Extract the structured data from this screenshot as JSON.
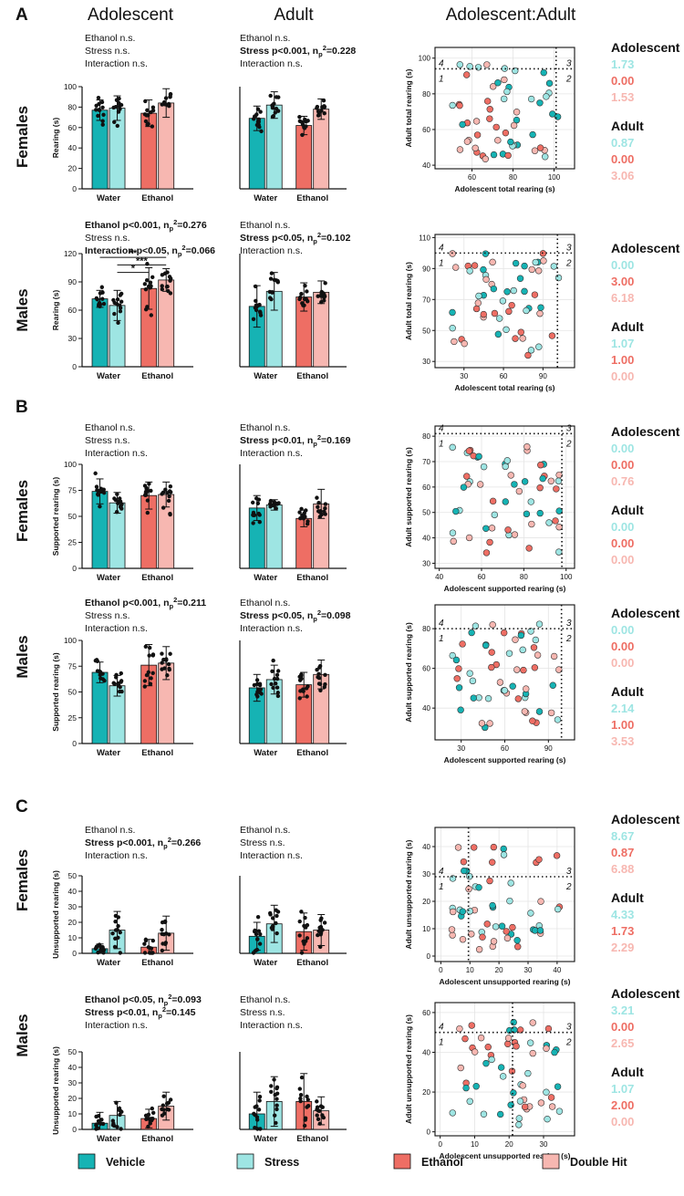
{
  "colors": {
    "vehicle": "#16b3b4",
    "stress": "#9ee5e3",
    "ethanol": "#ee6e64",
    "double_hit": "#f7b7b1",
    "axis": "#111111"
  },
  "figure": {
    "panel_letters": [
      "A",
      "B",
      "C"
    ],
    "col_headers": [
      "Adolescent",
      "Adult",
      "Adolescent:Adult"
    ],
    "row_labels": [
      "Females",
      "Males",
      "Females",
      "Males",
      "Females",
      "Males"
    ],
    "x_categories": [
      "Water",
      "Ethanol"
    ],
    "legend": [
      "Vehicle",
      "Stress",
      "Ethanol",
      "Double Hit"
    ]
  },
  "stats": {
    "A_f_adol": [
      "Ethanol n.s.",
      "Stress n.s.",
      "Interaction n.s."
    ],
    "A_f_adult": [
      "Ethanol n.s.",
      "Stress p<0.001, np2=0.228",
      "Interaction n.s."
    ],
    "A_m_adol": [
      "Ethanol p<0.001, np2=0.276",
      "Stress n.s.",
      "Interaction p<0.05, np2=0.066"
    ],
    "A_m_adult": [
      "Ethanol n.s.",
      "Stress p<0.05, np2=0.102",
      "Interaction n.s."
    ],
    "B_f_adol": [
      "Ethanol n.s.",
      "Stress n.s.",
      "Interaction n.s."
    ],
    "B_f_adult": [
      "Ethanol n.s.",
      "Stress p<0.01, np2=0.169",
      "Interaction n.s."
    ],
    "B_m_adol": [
      "Ethanol p<0.001, np2=0.211",
      "Stress n.s.",
      "Interaction n.s."
    ],
    "B_m_adult": [
      "Ethanol n.s.",
      "Stress p<0.05, np2=0.098",
      "Interaction n.s."
    ],
    "C_f_adol": [
      "Ethanol n.s.",
      "Stress p<0.001, np2=0.266",
      "Interaction n.s."
    ],
    "C_f_adult": [
      "Ethanol n.s.",
      "Stress n.s.",
      "Interaction n.s."
    ],
    "C_m_adol": [
      "Ethanol p<0.05, np2=0.093",
      "Stress p<0.01, np2=0.145",
      "Interaction n.s."
    ],
    "C_m_adult": [
      "Ethanol n.s.",
      "Stress n.s.",
      "Interaction n.s."
    ]
  },
  "percentages": {
    "A_f": {
      "Adolescent": [
        "1.73",
        "0.00",
        "1.53"
      ],
      "Adult": [
        "0.87",
        "0.00",
        "3.06"
      ]
    },
    "A_m": {
      "Adolescent": [
        "0.00",
        "3.00",
        "6.18"
      ],
      "Adult": [
        "1.07",
        "1.00",
        "0.00"
      ]
    },
    "B_f": {
      "Adolescent": [
        "0.00",
        "0.00",
        "0.76"
      ],
      "Adult": [
        "0.00",
        "0.00",
        "0.00"
      ]
    },
    "B_m": {
      "Adolescent": [
        "0.00",
        "0.00",
        "0.00"
      ],
      "Adult": [
        "2.14",
        "1.00",
        "3.53"
      ]
    },
    "C_f": {
      "Adolescent": [
        "8.67",
        "0.87",
        "6.88"
      ],
      "Adult": [
        "4.33",
        "1.73",
        "2.29"
      ]
    },
    "C_m": {
      "Adolescent": [
        "3.21",
        "0.00",
        "2.65"
      ],
      "Adult": [
        "1.07",
        "2.00",
        "0.00"
      ]
    }
  },
  "chart_data": [
    {
      "id": "A_f_adol",
      "type": "bar",
      "ylabel": "Rearing (s)",
      "ylim": [
        0,
        100
      ],
      "yticks": [
        0,
        20,
        40,
        60,
        80,
        100
      ],
      "series": [
        {
          "name": "Vehicle",
          "mean": 77,
          "sd": 10
        },
        {
          "name": "Stress",
          "mean": 79,
          "sd": 12
        },
        {
          "name": "Ethanol",
          "mean": 74,
          "sd": 13
        },
        {
          "name": "Double Hit",
          "mean": 84,
          "sd": 14
        }
      ]
    },
    {
      "id": "A_f_adult",
      "type": "bar",
      "ylabel": "",
      "ylim": [
        0,
        100
      ],
      "yticks": [],
      "series": [
        {
          "name": "Vehicle",
          "mean": 69,
          "sd": 12
        },
        {
          "name": "Stress",
          "mean": 82,
          "sd": 13
        },
        {
          "name": "Ethanol",
          "mean": 62,
          "sd": 9
        },
        {
          "name": "Double Hit",
          "mean": 78,
          "sd": 10
        }
      ]
    },
    {
      "id": "A_m_adol",
      "type": "bar",
      "ylabel": "Rearing (s)",
      "ylim": [
        0,
        120
      ],
      "yticks": [
        0,
        30,
        60,
        90,
        120
      ],
      "series": [
        {
          "name": "Vehicle",
          "mean": 72,
          "sd": 9
        },
        {
          "name": "Stress",
          "mean": 65,
          "sd": 16
        },
        {
          "name": "Ethanol",
          "mean": 83,
          "sd": 22
        },
        {
          "name": "Double Hit",
          "mean": 92,
          "sd": 12
        }
      ],
      "significance": [
        "**",
        "***",
        "*"
      ]
    },
    {
      "id": "A_m_adult",
      "type": "bar",
      "ylabel": "",
      "ylim": [
        0,
        120
      ],
      "yticks": [],
      "series": [
        {
          "name": "Vehicle",
          "mean": 64,
          "sd": 22
        },
        {
          "name": "Stress",
          "mean": 80,
          "sd": 20
        },
        {
          "name": "Ethanol",
          "mean": 74,
          "sd": 15
        },
        {
          "name": "Double Hit",
          "mean": 79,
          "sd": 12
        }
      ]
    },
    {
      "id": "B_f_adol",
      "type": "bar",
      "ylabel": "Supported rearing (s)",
      "ylim": [
        0,
        100
      ],
      "yticks": [
        0,
        25,
        50,
        75,
        100
      ],
      "series": [
        {
          "name": "Vehicle",
          "mean": 74,
          "sd": 12
        },
        {
          "name": "Stress",
          "mean": 63,
          "sd": 10
        },
        {
          "name": "Ethanol",
          "mean": 70,
          "sd": 13
        },
        {
          "name": "Double Hit",
          "mean": 71,
          "sd": 12
        }
      ]
    },
    {
      "id": "B_f_adult",
      "type": "bar",
      "ylabel": "",
      "ylim": [
        0,
        100
      ],
      "yticks": [],
      "series": [
        {
          "name": "Vehicle",
          "mean": 58,
          "sd": 12
        },
        {
          "name": "Stress",
          "mean": 61,
          "sd": 5
        },
        {
          "name": "Ethanol",
          "mean": 48,
          "sd": 8
        },
        {
          "name": "Double Hit",
          "mean": 62,
          "sd": 14
        }
      ]
    },
    {
      "id": "B_m_adol",
      "type": "bar",
      "ylabel": "Supported rearing (s)",
      "ylim": [
        0,
        100
      ],
      "yticks": [
        0,
        25,
        50,
        75,
        100
      ],
      "series": [
        {
          "name": "Vehicle",
          "mean": 69,
          "sd": 10
        },
        {
          "name": "Stress",
          "mean": 56,
          "sd": 10
        },
        {
          "name": "Ethanol",
          "mean": 76,
          "sd": 20
        },
        {
          "name": "Double Hit",
          "mean": 78,
          "sd": 16
        }
      ]
    },
    {
      "id": "B_m_adult",
      "type": "bar",
      "ylabel": "",
      "ylim": [
        0,
        100
      ],
      "yticks": [],
      "series": [
        {
          "name": "Vehicle",
          "mean": 54,
          "sd": 13
        },
        {
          "name": "Stress",
          "mean": 62,
          "sd": 14
        },
        {
          "name": "Ethanol",
          "mean": 57,
          "sd": 12
        },
        {
          "name": "Double Hit",
          "mean": 67,
          "sd": 14
        }
      ]
    },
    {
      "id": "C_f_adol",
      "type": "bar",
      "ylabel": "Unsupported rearing (s)",
      "ylim": [
        0,
        50
      ],
      "yticks": [
        0,
        10,
        20,
        30,
        40,
        50
      ],
      "series": [
        {
          "name": "Vehicle",
          "mean": 3,
          "sd": 3
        },
        {
          "name": "Stress",
          "mean": 15,
          "sd": 12
        },
        {
          "name": "Ethanol",
          "mean": 4,
          "sd": 5
        },
        {
          "name": "Double Hit",
          "mean": 13,
          "sd": 11
        }
      ]
    },
    {
      "id": "C_f_adult",
      "type": "bar",
      "ylabel": "",
      "ylim": [
        0,
        50
      ],
      "yticks": [],
      "series": [
        {
          "name": "Vehicle",
          "mean": 11,
          "sd": 9
        },
        {
          "name": "Stress",
          "mean": 19,
          "sd": 12
        },
        {
          "name": "Ethanol",
          "mean": 14,
          "sd": 12
        },
        {
          "name": "Double Hit",
          "mean": 15,
          "sd": 10
        }
      ]
    },
    {
      "id": "C_m_adol",
      "type": "bar",
      "ylabel": "Unsupported rearing (s)",
      "ylim": [
        0,
        50
      ],
      "yticks": [
        0,
        10,
        20,
        30,
        40,
        50
      ],
      "series": [
        {
          "name": "Vehicle",
          "mean": 4,
          "sd": 7
        },
        {
          "name": "Stress",
          "mean": 9,
          "sd": 9
        },
        {
          "name": "Ethanol",
          "mean": 7,
          "sd": 6
        },
        {
          "name": "Double Hit",
          "mean": 15,
          "sd": 9
        }
      ]
    },
    {
      "id": "C_m_adult",
      "type": "bar",
      "ylabel": "",
      "ylim": [
        0,
        50
      ],
      "yticks": [],
      "series": [
        {
          "name": "Vehicle",
          "mean": 10,
          "sd": 14
        },
        {
          "name": "Stress",
          "mean": 18,
          "sd": 16
        },
        {
          "name": "Ethanol",
          "mean": 18,
          "sd": 18
        },
        {
          "name": "Double Hit",
          "mean": 12,
          "sd": 9
        }
      ]
    },
    {
      "id": "A_f_sc",
      "type": "scatter",
      "xlabel": "Adolescent total rearing (s)",
      "ylabel": "Adult total rearing (s)",
      "xlim": [
        42,
        110
      ],
      "ylim": [
        38,
        106
      ],
      "xticks": [
        60,
        80,
        100
      ],
      "yticks": [
        40,
        60,
        80,
        100
      ],
      "xcut": 101,
      "ycut": 94
    },
    {
      "id": "A_m_sc",
      "type": "scatter",
      "xlabel": "Adolescent total rearing (s)",
      "ylabel": "Adult total rearing (s)",
      "xlim": [
        8,
        114
      ],
      "ylim": [
        26,
        112
      ],
      "xticks": [
        30,
        60,
        90
      ],
      "yticks": [
        30,
        50,
        70,
        90,
        110
      ],
      "xcut": 101,
      "ycut": 100
    },
    {
      "id": "B_f_sc",
      "type": "scatter",
      "xlabel": "Adolescent supported rearing (s)",
      "ylabel": "Adult supported rearing (s)",
      "xlim": [
        38,
        104
      ],
      "ylim": [
        28,
        84
      ],
      "xticks": [
        40,
        60,
        80,
        100
      ],
      "yticks": [
        30,
        40,
        50,
        60,
        70,
        80
      ],
      "xcut": 98,
      "ycut": 81
    },
    {
      "id": "B_m_sc",
      "type": "scatter",
      "xlabel": "Adolescent supported rearing (s)",
      "ylabel": "Adult supported rearing (s)",
      "xlim": [
        12,
        108
      ],
      "ylim": [
        24,
        92
      ],
      "xticks": [
        30,
        60,
        90
      ],
      "yticks": [
        40,
        60,
        80
      ],
      "xcut": 99,
      "ycut": 80
    },
    {
      "id": "C_f_sc",
      "type": "scatter",
      "xlabel": "Adolescent unsupported rearing (s)",
      "ylabel": "Adult unsupported rearing (s)",
      "xlim": [
        -2,
        46
      ],
      "ylim": [
        -2,
        47
      ],
      "xticks": [
        0,
        10,
        20,
        30,
        40
      ],
      "yticks": [
        0,
        10,
        20,
        30,
        40
      ],
      "xcut": 9.5,
      "ycut": 29
    },
    {
      "id": "C_m_sc",
      "type": "scatter",
      "xlabel": "Adolescent unsupported rearing (s)",
      "ylabel": "Adult unsupported rearing (s)",
      "xlim": [
        -1.5,
        39
      ],
      "ylim": [
        -2,
        65
      ],
      "xticks": [
        0,
        10,
        20,
        30
      ],
      "yticks": [
        0,
        20,
        40,
        60
      ],
      "xcut": 21,
      "ycut": 50
    }
  ]
}
